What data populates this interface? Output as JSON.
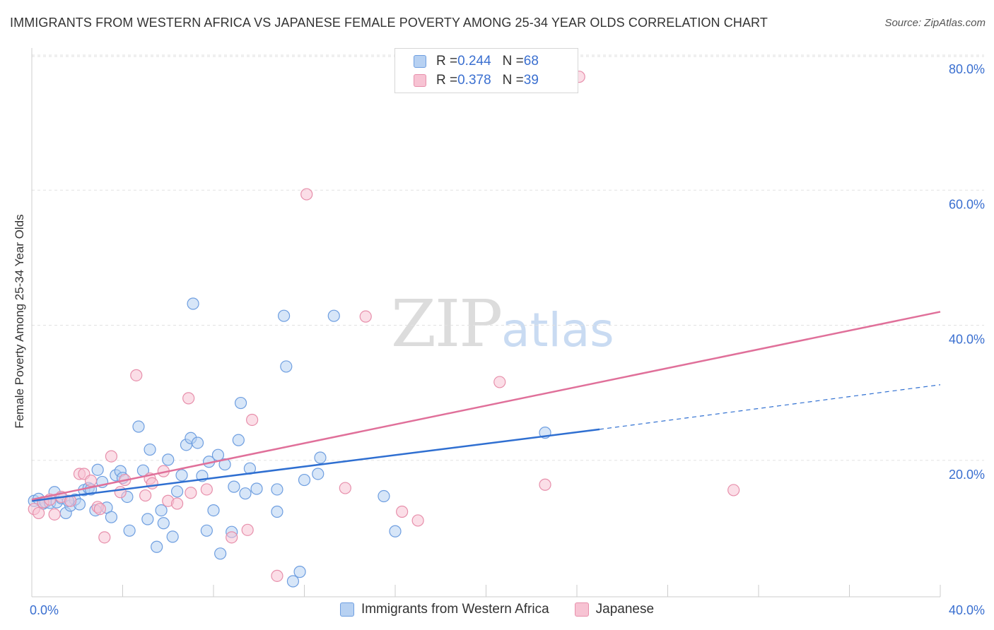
{
  "title": "IMMIGRANTS FROM WESTERN AFRICA VS JAPANESE FEMALE POVERTY AMONG 25-34 YEAR OLDS CORRELATION CHART",
  "source": "Source: ZipAtlas.com",
  "watermark": {
    "zip": "ZIP",
    "atlas": "atlas"
  },
  "legend_top": {
    "rows": [
      {
        "r_label": "R = ",
        "r_value": "0.244",
        "n_label": "N = ",
        "n_value": "68"
      },
      {
        "r_label": "R = ",
        "r_value": "0.378",
        "n_label": "N = ",
        "n_value": "39"
      }
    ]
  },
  "colors": {
    "blue_fill": "#b7d1f2",
    "blue_stroke": "#6e9ee0",
    "blue_line": "#2f6fd1",
    "pink_fill": "#f7c3d3",
    "pink_stroke": "#e78fab",
    "pink_line": "#e0709a",
    "tick_label": "#3a6fd0",
    "grid": "#e2e2e2"
  },
  "chart_data": {
    "type": "scatter",
    "title": "IMMIGRANTS FROM WESTERN AFRICA VS JAPANESE FEMALE POVERTY AMONG 25-34 YEAR OLDS CORRELATION CHART",
    "xlabel": "",
    "ylabel": "Female Poverty Among 25-34 Year Olds",
    "xlim": [
      0,
      40
    ],
    "ylim": [
      0,
      80
    ],
    "x_tick_labels": [
      "0.0%",
      "40.0%"
    ],
    "y_ticks": [
      20,
      40,
      60,
      80
    ],
    "y_tick_labels": [
      "20.0%",
      "40.0%",
      "60.0%",
      "80.0%"
    ],
    "grid": true,
    "legend_position": "bottom",
    "series": [
      {
        "name": "Immigrants from Western Africa",
        "color": "#b7d1f2",
        "R": 0.244,
        "N": 68,
        "trend": {
          "x": [
            0,
            25
          ],
          "y": [
            14.2,
            24.8
          ],
          "dashed_to": [
            40,
            31.4
          ]
        },
        "points": [
          [
            0.1,
            14.2
          ],
          [
            0.3,
            14.5
          ],
          [
            0.5,
            13.8
          ],
          [
            0.6,
            14.0
          ],
          [
            0.8,
            13.9
          ],
          [
            1.0,
            15.5
          ],
          [
            1.1,
            14.0
          ],
          [
            1.3,
            14.6
          ],
          [
            1.5,
            12.4
          ],
          [
            1.7,
            13.5
          ],
          [
            1.9,
            14.4
          ],
          [
            2.1,
            13.7
          ],
          [
            2.3,
            15.8
          ],
          [
            2.5,
            16.1
          ],
          [
            2.8,
            12.8
          ],
          [
            2.9,
            18.8
          ],
          [
            3.1,
            17.0
          ],
          [
            3.3,
            13.2
          ],
          [
            3.5,
            11.8
          ],
          [
            3.7,
            18.0
          ],
          [
            3.9,
            18.6
          ],
          [
            4.0,
            17.6
          ],
          [
            4.2,
            14.8
          ],
          [
            4.3,
            9.8
          ],
          [
            4.7,
            25.2
          ],
          [
            4.9,
            18.7
          ],
          [
            5.1,
            11.5
          ],
          [
            5.2,
            21.8
          ],
          [
            5.5,
            7.4
          ],
          [
            5.7,
            12.8
          ],
          [
            5.8,
            10.9
          ],
          [
            6.0,
            20.3
          ],
          [
            6.2,
            8.9
          ],
          [
            6.4,
            15.6
          ],
          [
            6.6,
            18.0
          ],
          [
            6.8,
            22.5
          ],
          [
            7.0,
            23.5
          ],
          [
            7.1,
            43.4
          ],
          [
            7.3,
            22.8
          ],
          [
            7.5,
            17.9
          ],
          [
            7.7,
            9.8
          ],
          [
            7.8,
            20.0
          ],
          [
            8.0,
            12.8
          ],
          [
            8.2,
            21.0
          ],
          [
            8.3,
            6.4
          ],
          [
            8.5,
            19.6
          ],
          [
            8.8,
            9.6
          ],
          [
            8.9,
            16.3
          ],
          [
            9.1,
            23.2
          ],
          [
            9.2,
            28.7
          ],
          [
            9.4,
            15.3
          ],
          [
            9.6,
            19.0
          ],
          [
            9.9,
            16.0
          ],
          [
            10.8,
            12.6
          ],
          [
            10.8,
            15.9
          ],
          [
            11.1,
            41.6
          ],
          [
            11.2,
            34.1
          ],
          [
            11.5,
            2.3
          ],
          [
            11.8,
            3.7
          ],
          [
            12.0,
            17.3
          ],
          [
            12.6,
            18.2
          ],
          [
            12.7,
            20.6
          ],
          [
            13.3,
            41.6
          ],
          [
            15.5,
            14.9
          ],
          [
            16.0,
            9.7
          ],
          [
            22.6,
            24.3
          ],
          [
            1.6,
            14.2
          ],
          [
            2.6,
            15.9
          ]
        ]
      },
      {
        "name": "Japanese",
        "color": "#f7c3d3",
        "R": 0.378,
        "N": 39,
        "trend": {
          "x": [
            0,
            40
          ],
          "y": [
            14.4,
            42.2
          ]
        },
        "points": [
          [
            0.1,
            13.0
          ],
          [
            0.3,
            12.4
          ],
          [
            0.5,
            14.0
          ],
          [
            0.8,
            14.4
          ],
          [
            1.0,
            12.2
          ],
          [
            1.3,
            14.8
          ],
          [
            1.7,
            14.2
          ],
          [
            2.1,
            18.2
          ],
          [
            2.3,
            18.2
          ],
          [
            2.6,
            17.2
          ],
          [
            2.9,
            13.3
          ],
          [
            3.2,
            8.8
          ],
          [
            3.5,
            20.8
          ],
          [
            3.9,
            15.5
          ],
          [
            4.1,
            17.3
          ],
          [
            4.6,
            32.8
          ],
          [
            5.2,
            17.5
          ],
          [
            5.3,
            16.8
          ],
          [
            5.8,
            18.6
          ],
          [
            6.0,
            14.2
          ],
          [
            6.4,
            13.8
          ],
          [
            6.9,
            29.4
          ],
          [
            7.0,
            15.4
          ],
          [
            7.7,
            15.9
          ],
          [
            8.8,
            8.8
          ],
          [
            9.5,
            9.9
          ],
          [
            9.7,
            26.2
          ],
          [
            10.8,
            3.1
          ],
          [
            12.1,
            59.6
          ],
          [
            13.8,
            16.1
          ],
          [
            14.7,
            41.5
          ],
          [
            16.3,
            12.6
          ],
          [
            17.0,
            11.3
          ],
          [
            20.6,
            31.8
          ],
          [
            22.6,
            16.6
          ],
          [
            24.1,
            77.0
          ],
          [
            30.9,
            15.8
          ],
          [
            5.0,
            15.0
          ],
          [
            3.0,
            13.0
          ]
        ]
      }
    ]
  },
  "legend_bottom": {
    "items": [
      {
        "label": "Immigrants from Western Africa"
      },
      {
        "label": "Japanese"
      }
    ]
  }
}
